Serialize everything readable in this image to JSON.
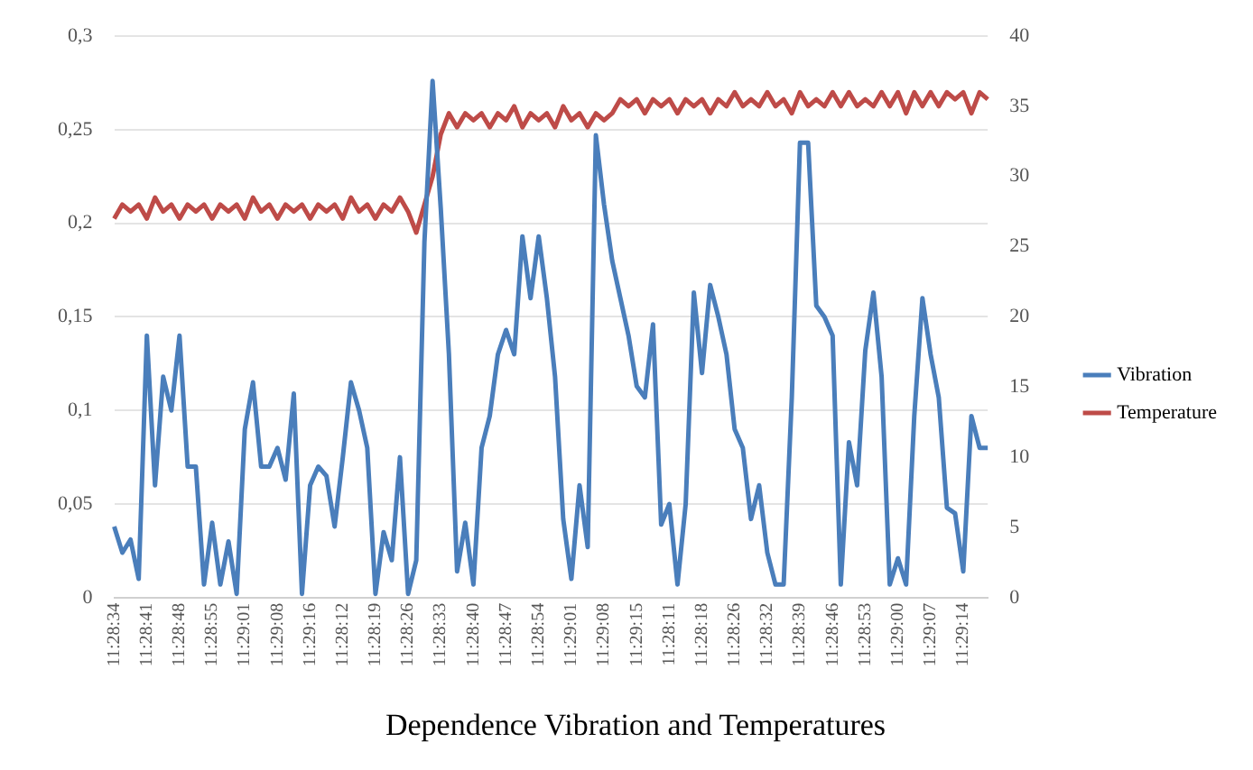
{
  "chart_data": {
    "type": "line",
    "title": "Dependence Vibration and Temperatures",
    "categories": [
      "11:28:34",
      null,
      null,
      null,
      "11:28:41",
      null,
      null,
      null,
      "11:28:48",
      null,
      null,
      null,
      "11:28:55",
      null,
      null,
      null,
      "11:29:01",
      null,
      null,
      null,
      "11:29:08",
      null,
      null,
      null,
      "11:29:16",
      null,
      null,
      null,
      "11:28:12",
      null,
      null,
      null,
      "11:28:19",
      null,
      null,
      null,
      "11:28:26",
      null,
      null,
      null,
      "11:28:33",
      null,
      null,
      null,
      "11:28:40",
      null,
      null,
      null,
      "11:28:47",
      null,
      null,
      null,
      "11:28:54",
      null,
      null,
      null,
      "11:29:01",
      null,
      null,
      null,
      "11:29:08",
      null,
      null,
      null,
      "11:29:15",
      null,
      null,
      null,
      "11:28:11",
      null,
      null,
      null,
      "11:28:18",
      null,
      null,
      null,
      "11:28:26",
      null,
      null,
      null,
      "11:28:32",
      null,
      null,
      null,
      "11:28:39",
      null,
      null,
      null,
      "11:28:46",
      null,
      null,
      null,
      "11:28:53",
      null,
      null,
      null,
      "11:29:00",
      null,
      null,
      null,
      "11:29:07",
      null,
      null,
      null,
      "11:29:14",
      null,
      null,
      null
    ],
    "series": [
      {
        "name": "Vibration",
        "color": "#4a7ebb",
        "values": [
          0.038,
          0.024,
          0.031,
          0.01,
          0.14,
          0.06,
          0.118,
          0.1,
          0.14,
          0.07,
          0.07,
          0.007,
          0.04,
          0.007,
          0.03,
          0.002,
          0.09,
          0.115,
          0.07,
          0.07,
          0.08,
          0.063,
          0.109,
          0.002,
          0.06,
          0.07,
          0.065,
          0.038,
          0.075,
          0.115,
          0.1,
          0.08,
          0.002,
          0.035,
          0.02,
          0.075,
          0.002,
          0.02,
          0.19,
          0.276,
          0.208,
          0.13,
          0.014,
          0.04,
          0.007,
          0.08,
          0.097,
          0.13,
          0.143,
          0.13,
          0.193,
          0.16,
          0.193,
          0.16,
          0.118,
          0.042,
          0.01,
          0.06,
          0.027,
          0.247,
          0.21,
          0.18,
          0.16,
          0.14,
          0.113,
          0.107,
          0.146,
          0.039,
          0.05,
          0.007,
          0.05,
          0.163,
          0.12,
          0.167,
          0.15,
          0.13,
          0.09,
          0.08,
          0.042,
          0.06,
          0.024,
          0.007,
          0.007,
          0.107,
          0.243,
          0.243,
          0.156,
          0.15,
          0.14,
          0.007,
          0.083,
          0.06,
          0.132,
          0.163,
          0.118,
          0.007,
          0.021,
          0.007,
          0.097,
          0.16,
          0.13,
          0.107,
          0.048,
          0.045,
          0.014,
          0.097,
          0.08,
          0.08
        ]
      },
      {
        "name": "Temperature",
        "color": "#be4b48",
        "axis": "y2",
        "values": [
          27,
          28,
          27.5,
          28,
          27,
          28.5,
          27.5,
          28,
          27,
          28,
          27.5,
          28,
          27,
          28,
          27.5,
          28,
          27,
          28.5,
          27.5,
          28,
          27,
          28,
          27.5,
          28,
          27,
          28,
          27.5,
          28,
          27,
          28.5,
          27.5,
          28,
          27,
          28,
          27.5,
          28.5,
          27.5,
          26,
          28,
          30,
          33,
          34.5,
          33.5,
          34.5,
          34,
          34.5,
          33.5,
          34.5,
          34,
          35,
          33.5,
          34.5,
          34,
          34.5,
          33.5,
          35,
          34,
          34.5,
          33.5,
          34.5,
          34,
          34.5,
          35.5,
          35,
          35.5,
          34.5,
          35.5,
          35,
          35.5,
          34.5,
          35.5,
          35,
          35.5,
          34.5,
          35.5,
          35,
          36,
          35,
          35.5,
          35,
          36,
          35,
          35.5,
          34.5,
          36,
          35,
          35.5,
          35,
          36,
          35,
          36,
          35,
          35.5,
          35,
          36,
          35,
          36,
          34.5,
          36,
          35,
          36,
          35,
          36,
          35.5,
          36,
          34.5,
          36,
          35.5
        ]
      }
    ],
    "ylim": [
      0,
      0.3
    ],
    "yticks": [
      {
        "value": 0,
        "label": "0"
      },
      {
        "value": 0.05,
        "label": "0,05"
      },
      {
        "value": 0.1,
        "label": "0,1"
      },
      {
        "value": 0.15,
        "label": "0,15"
      },
      {
        "value": 0.2,
        "label": "0,2"
      },
      {
        "value": 0.25,
        "label": "0,25"
      },
      {
        "value": 0.3,
        "label": "0,3"
      }
    ],
    "y2lim": [
      0,
      40
    ],
    "y2ticks": [
      0,
      5,
      10,
      15,
      20,
      25,
      30,
      35,
      40
    ],
    "grid": "y",
    "legend": "right",
    "marker": "none",
    "line_style": "solid"
  }
}
